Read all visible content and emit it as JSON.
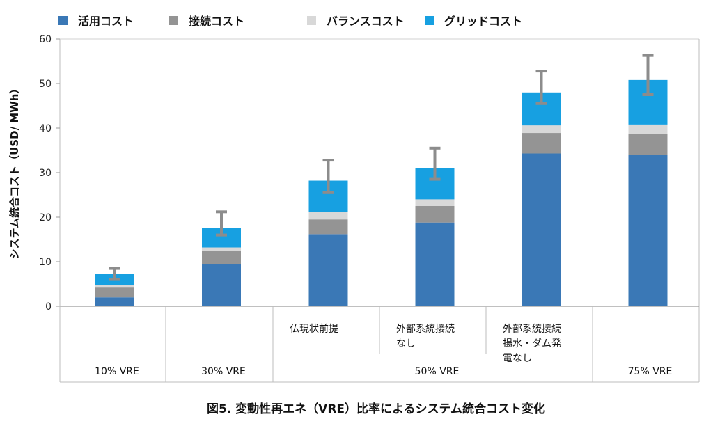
{
  "chart_data": {
    "type": "bar",
    "stacked": true,
    "title": "図5. 変動性再エネ（VRE）比率によるシステム統合コスト変化",
    "ylabel": "システム統合コスト（USD/ MWh）",
    "ylim": [
      0,
      60
    ],
    "yticks": [
      0,
      10,
      20,
      30,
      40,
      50,
      60
    ],
    "grid": false,
    "legend_position": "top",
    "categories": [
      {
        "label": [],
        "group": "10% VRE"
      },
      {
        "label": [],
        "group": "30% VRE"
      },
      {
        "label": [
          "仏現状前提"
        ],
        "group": "50% VRE"
      },
      {
        "label": [
          "外部系統接続",
          "なし"
        ],
        "group": "50% VRE"
      },
      {
        "label": [
          "外部系統接続",
          "揚水・ダム発",
          "電なし"
        ],
        "group": "50% VRE"
      },
      {
        "label": [],
        "group": "75% VRE"
      }
    ],
    "groups": [
      {
        "label": "10% VRE",
        "span": [
          0,
          0
        ]
      },
      {
        "label": "30% VRE",
        "span": [
          1,
          1
        ]
      },
      {
        "label": "50% VRE",
        "span": [
          2,
          4
        ]
      },
      {
        "label": "75% VRE",
        "span": [
          5,
          5
        ]
      }
    ],
    "series": [
      {
        "name": "活用コスト",
        "color": "#3a78b6",
        "values": [
          2.0,
          9.5,
          16.2,
          18.8,
          34.3,
          34.0
        ]
      },
      {
        "name": "接続コスト",
        "color": "#949494",
        "values": [
          2.2,
          2.9,
          3.3,
          3.7,
          4.6,
          4.6
        ]
      },
      {
        "name": "バランスコスト",
        "color": "#d8d8d8",
        "values": [
          0.5,
          0.8,
          1.7,
          1.5,
          1.7,
          2.2
        ]
      },
      {
        "name": "グリッドコスト",
        "color": "#17a0e1",
        "values": [
          2.5,
          4.3,
          7.0,
          7.0,
          7.4,
          10.0
        ]
      }
    ],
    "error_bars": {
      "color": "#8c8c8c",
      "low": [
        6.0,
        16.0,
        25.5,
        28.5,
        45.5,
        47.5
      ],
      "high": [
        8.5,
        21.2,
        32.8,
        35.5,
        52.8,
        56.3
      ]
    }
  }
}
